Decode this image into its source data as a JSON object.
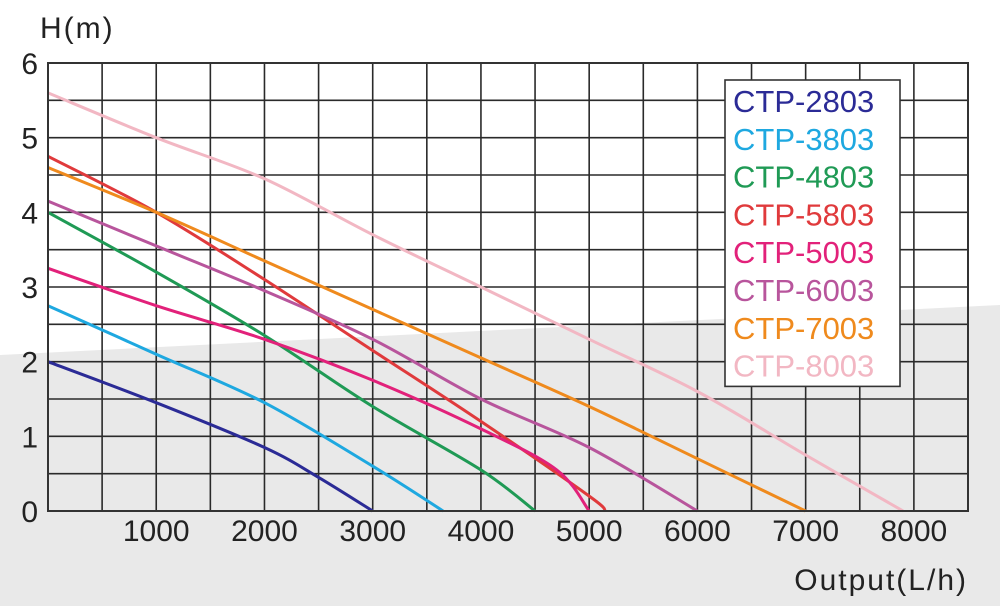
{
  "chart_data": {
    "type": "line",
    "ylabel": "H(m)",
    "xlabel": "Output(L/h)",
    "xlim": [
      0,
      8500
    ],
    "ylim": [
      0,
      6
    ],
    "x_ticks": [
      "1000",
      "2000",
      "3000",
      "4000",
      "5000",
      "6000",
      "7000",
      "8000"
    ],
    "y_ticks": [
      "0",
      "1",
      "2",
      "3",
      "4",
      "5",
      "6"
    ],
    "grid": true,
    "legend_position": "top-right",
    "series": [
      {
        "name": "CTP-2803",
        "color": "#2b2b96",
        "x": [
          0,
          1000,
          2000,
          2500,
          3000
        ],
        "y": [
          2.0,
          1.45,
          0.85,
          0.45,
          0.0
        ]
      },
      {
        "name": "CTP-3803",
        "color": "#1ea8e0",
        "x": [
          0,
          1000,
          2000,
          3000,
          3650
        ],
        "y": [
          2.75,
          2.1,
          1.45,
          0.6,
          0.0
        ]
      },
      {
        "name": "CTP-4803",
        "color": "#1f9a55",
        "x": [
          0,
          1000,
          2000,
          3000,
          4000,
          4500
        ],
        "y": [
          4.0,
          3.2,
          2.35,
          1.4,
          0.55,
          0.0
        ]
      },
      {
        "name": "CTP-5803",
        "color": "#e03a3c",
        "x": [
          0,
          1000,
          2000,
          3000,
          4000,
          5000,
          5150
        ],
        "y": [
          4.75,
          4.0,
          3.1,
          2.15,
          1.2,
          0.2,
          0.0
        ]
      },
      {
        "name": "CTP-5003",
        "color": "#e2217a",
        "x": [
          0,
          1000,
          2000,
          3000,
          4000,
          4700,
          5000
        ],
        "y": [
          3.25,
          2.75,
          2.3,
          1.75,
          1.1,
          0.55,
          0.0
        ]
      },
      {
        "name": "CTP-6003",
        "color": "#b8559c",
        "x": [
          0,
          1000,
          2000,
          3000,
          4000,
          5000,
          6000
        ],
        "y": [
          4.15,
          3.55,
          2.95,
          2.3,
          1.5,
          0.85,
          0.0
        ]
      },
      {
        "name": "CTP-7003",
        "color": "#ef8a1d",
        "x": [
          0,
          1000,
          2000,
          3000,
          4000,
          5000,
          6000,
          7000
        ],
        "y": [
          4.6,
          4.0,
          3.35,
          2.7,
          2.05,
          1.4,
          0.7,
          0.0
        ]
      },
      {
        "name": "CTP-8003",
        "color": "#f2b7c3",
        "x": [
          0,
          1000,
          2000,
          3000,
          4000,
          5000,
          6000,
          7000,
          7900
        ],
        "y": [
          5.6,
          5.0,
          4.45,
          3.7,
          3.0,
          2.3,
          1.6,
          0.75,
          0.0
        ]
      }
    ]
  }
}
